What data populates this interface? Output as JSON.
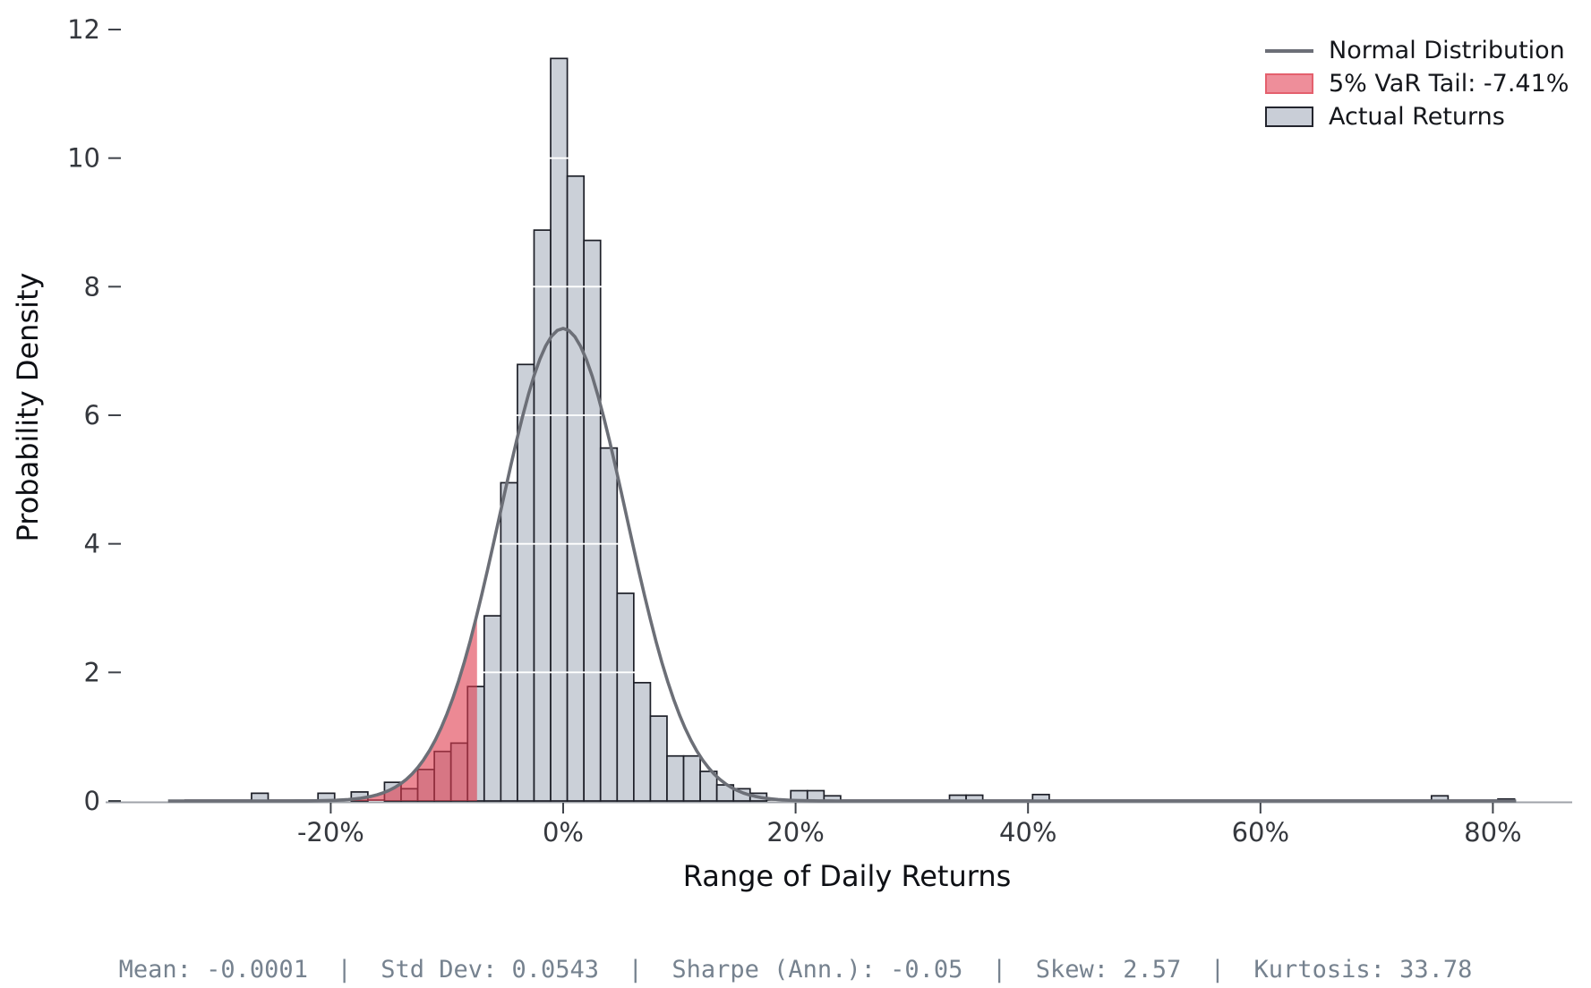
{
  "figure": {
    "xlabel": "Range of Daily Returns",
    "ylabel": "Probability Density",
    "stats_line": "Mean: -0.0001  |  Std Dev: 0.0543  |  Sharpe (Ann.): -0.05  |  Skew: 2.57  |  Kurtosis: 33.78"
  },
  "legend": {
    "items": [
      {
        "type": "line",
        "label": "Normal Distribution"
      },
      {
        "type": "patch-red",
        "label": "5% VaR Tail: -7.41%"
      },
      {
        "type": "patch-gray",
        "label": "Actual Returns"
      }
    ]
  },
  "chart_data": {
    "type": "histogram",
    "title": "",
    "xlabel": "Range of Daily Returns",
    "ylabel": "Probability Density",
    "x_unit": "percent_daily_return",
    "xlim_pct": [
      -39.3,
      86.8
    ],
    "ylim": [
      0,
      12.25
    ],
    "grid": "horizontal-white",
    "legend_position": "upper-right",
    "x_ticks": [
      {
        "value": -20,
        "label": "-20%"
      },
      {
        "value": 0,
        "label": "0%"
      },
      {
        "value": 20,
        "label": "20%"
      },
      {
        "value": 40,
        "label": "40%"
      },
      {
        "value": 60,
        "label": "60%"
      },
      {
        "value": 80,
        "label": "80%"
      }
    ],
    "y_ticks": [
      {
        "value": 0,
        "label": "0"
      },
      {
        "value": 2,
        "label": "2"
      },
      {
        "value": 4,
        "label": "4"
      },
      {
        "value": 6,
        "label": "6"
      },
      {
        "value": 8,
        "label": "8"
      },
      {
        "value": 10,
        "label": "10"
      },
      {
        "value": 12,
        "label": "12"
      }
    ],
    "grid_values": [
      2,
      4,
      6,
      8,
      10,
      12
    ],
    "bin_width_pct": 1.43,
    "bars_center_pct_and_density": [
      [
        -26.1,
        0.12
      ],
      [
        -20.38,
        0.12
      ],
      [
        -17.52,
        0.14
      ],
      [
        -14.66,
        0.29
      ],
      [
        -13.23,
        0.19
      ],
      [
        -11.8,
        0.49
      ],
      [
        -10.37,
        0.77
      ],
      [
        -8.94,
        0.9
      ],
      [
        -7.51,
        1.78
      ],
      [
        -6.08,
        2.88
      ],
      [
        -4.65,
        4.95
      ],
      [
        -3.22,
        6.79
      ],
      [
        -1.79,
        8.88
      ],
      [
        -0.36,
        11.55
      ],
      [
        1.07,
        9.72
      ],
      [
        2.5,
        8.72
      ],
      [
        3.93,
        5.49
      ],
      [
        5.36,
        3.23
      ],
      [
        6.79,
        1.84
      ],
      [
        8.22,
        1.32
      ],
      [
        9.65,
        0.7
      ],
      [
        11.08,
        0.7
      ],
      [
        12.51,
        0.46
      ],
      [
        13.94,
        0.25
      ],
      [
        15.37,
        0.19
      ],
      [
        16.8,
        0.12
      ],
      [
        20.3,
        0.16
      ],
      [
        21.73,
        0.16
      ],
      [
        23.16,
        0.08
      ],
      [
        33.96,
        0.09
      ],
      [
        35.39,
        0.09
      ],
      [
        41.11,
        0.1
      ],
      [
        75.43,
        0.08
      ],
      [
        81.15,
        0.03
      ]
    ],
    "var_cutoff_pct": -7.41,
    "normal_curve": {
      "mean_pct": -0.01,
      "sigma_pct": 5.43,
      "peak_density": 7.35,
      "x_range_pct": [
        -34,
        82.3
      ]
    },
    "baseline_range_pct": [
      -32.6,
      81.9
    ],
    "stats": {
      "mean": "-0.0001",
      "std_dev": "0.0543",
      "sharpe_ann": "-0.05",
      "skew": "2.57",
      "kurtosis": "33.78"
    },
    "colors": {
      "bar_fill": "#cbd0d8",
      "bar_edge": "#1d1f28",
      "curve": "#6c6f77",
      "var_fill": "rgba(224,58,76,0.60)",
      "grid": "#ffffff",
      "axis_line": "#9fa3a9",
      "tick": "#3f434a",
      "tick_label": "#35383e",
      "axis_label": "#0e1015",
      "stats_text": "#76828f",
      "legend_red_fill": "#ee8e9a",
      "legend_red_edge": "#e4606d",
      "legend_gray_fill": "#c9ced7",
      "legend_gray_edge": "#23252e",
      "legend_text": "#15171c"
    }
  }
}
